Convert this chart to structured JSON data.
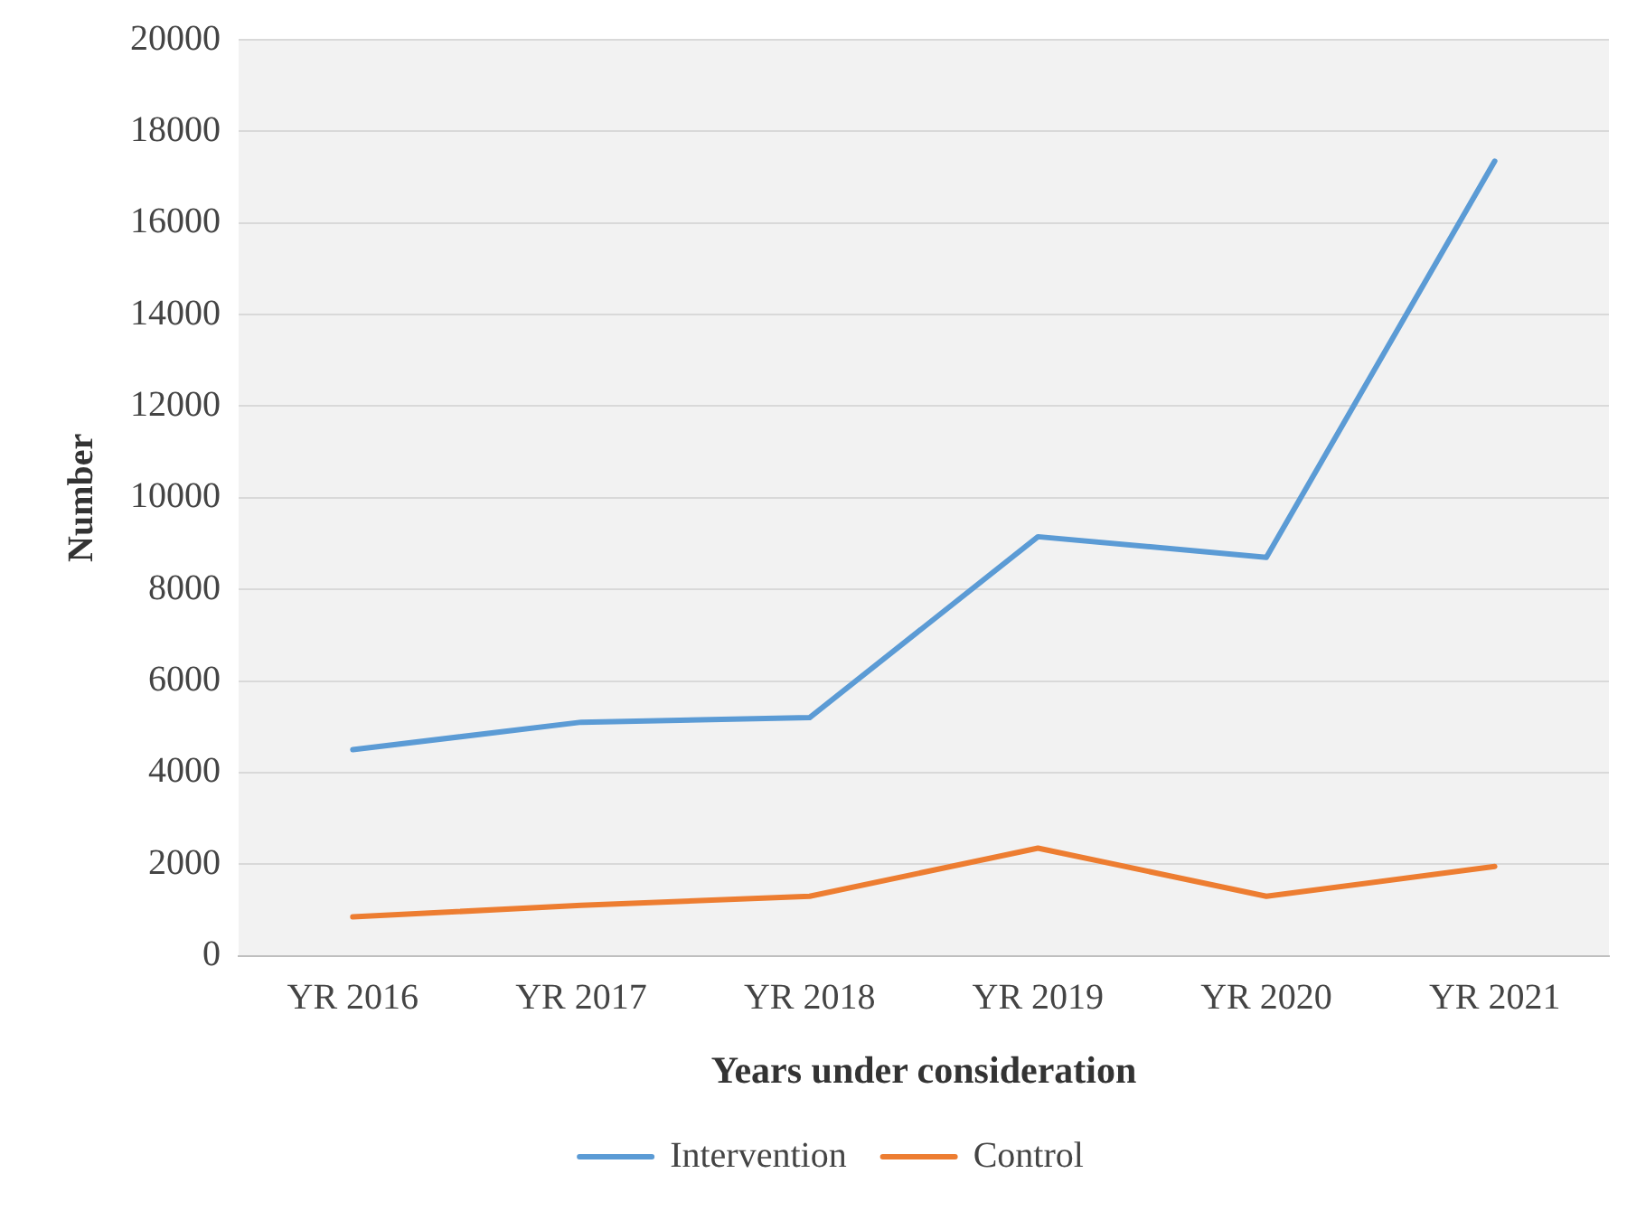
{
  "chart_data": {
    "type": "line",
    "xlabel": "Years under consideration",
    "ylabel": "Number",
    "categories": [
      "YR 2016",
      "YR 2017",
      "YR 2018",
      "YR 2019",
      "YR 2020",
      "YR 2021"
    ],
    "series": [
      {
        "name": "Intervention",
        "color": "#5b9bd5",
        "values": [
          4500,
          5100,
          5200,
          9150,
          8700,
          17350
        ]
      },
      {
        "name": "Control",
        "color": "#ed7d31",
        "values": [
          850,
          1100,
          1300,
          2350,
          1300,
          1950
        ]
      }
    ],
    "ylim": [
      0,
      20000
    ],
    "yticks": [
      0,
      2000,
      4000,
      6000,
      8000,
      10000,
      12000,
      14000,
      16000,
      18000,
      20000
    ],
    "grid": "y",
    "legend": "bottom",
    "marker": "none",
    "line_style": "solid"
  }
}
